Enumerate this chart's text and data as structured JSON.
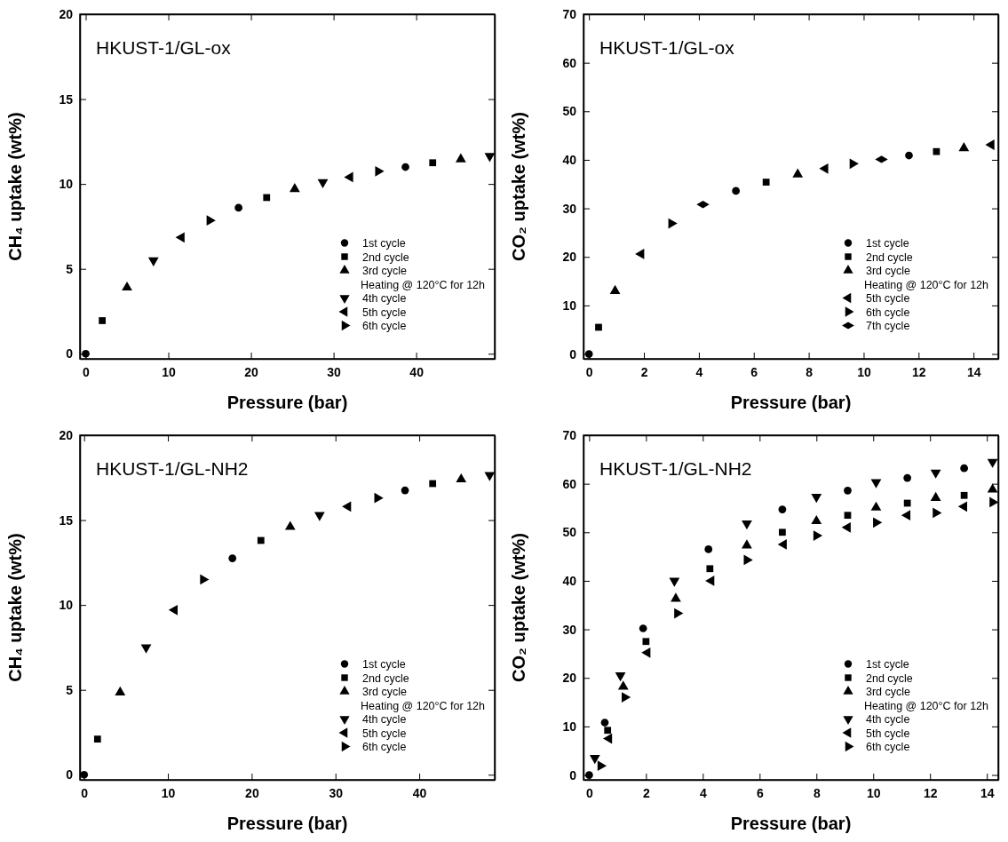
{
  "chart_data": [
    {
      "type": "scatter",
      "title": "HKUST-1/GL-ox",
      "xlabel": "Pressure (bar)",
      "ylabel": "CH₄ uptake (wt%)",
      "xlim": [
        -0.7,
        49.5
      ],
      "ylim": [
        -0.3,
        20
      ],
      "xticks": [
        0,
        10,
        20,
        30,
        40
      ],
      "yticks": [
        0,
        5,
        10,
        15,
        20
      ],
      "legend": "bottom right",
      "annotations": [
        "Heating @ 120°C for 12h"
      ],
      "series": [
        {
          "name": "1st cycle",
          "color": "#000000",
          "marker": "circle",
          "x": [
            0,
            18.5,
            38.7
          ],
          "values": [
            0,
            8.6,
            11.0
          ]
        },
        {
          "name": "2nd cycle",
          "color": "#000000",
          "marker": "square",
          "x": [
            2,
            21.9,
            42
          ],
          "values": [
            1.95,
            9.2,
            11.25
          ]
        },
        {
          "name": "3rd cycle",
          "color": "#000000",
          "marker": "triangle",
          "x": [
            5,
            25.3,
            45.4
          ],
          "values": [
            3.9,
            9.7,
            11.45
          ]
        },
        {
          "name": "4th cycle",
          "color": "#000000",
          "marker": "triangle-down",
          "x": [
            8.2,
            28.7,
            48.9
          ],
          "values": [
            5.5,
            10.1,
            11.65
          ]
        },
        {
          "name": "5th cycle",
          "color": "#000000",
          "marker": "triangle-left",
          "x": [
            11.6,
            32
          ],
          "values": [
            6.85,
            10.4
          ]
        },
        {
          "name": "6th cycle",
          "color": "#000000",
          "marker": "triangle-right",
          "x": [
            15,
            35.4
          ],
          "values": [
            7.85,
            10.75
          ]
        }
      ]
    },
    {
      "type": "scatter",
      "title": "HKUST-1/GL-ox",
      "xlabel": "Pressure (bar)",
      "ylabel": "CO₂ uptake (wt%)",
      "xlim": [
        -0.2,
        14.9
      ],
      "ylim": [
        -1,
        70
      ],
      "xticks": [
        0,
        2,
        4,
        6,
        8,
        10,
        12,
        14
      ],
      "yticks": [
        0,
        10,
        20,
        30,
        40,
        50,
        60,
        70
      ],
      "legend": "bottom right",
      "annotations": [
        "Heating @ 120°C for 12h"
      ],
      "series": [
        {
          "name": "1st cycle",
          "color": "#000000",
          "marker": "circle",
          "x": [
            0,
            5.35,
            11.65
          ],
          "values": [
            0,
            33.6,
            40.9
          ]
        },
        {
          "name": "2nd cycle",
          "color": "#000000",
          "marker": "square",
          "x": [
            0.35,
            6.45,
            12.65
          ],
          "values": [
            5.5,
            35.4,
            41.7
          ]
        },
        {
          "name": "3rd cycle",
          "color": "#000000",
          "marker": "triangle",
          "x": [
            0.95,
            7.6,
            13.65
          ],
          "values": [
            13,
            37,
            42.4
          ]
        },
        {
          "name": "5th cycle",
          "color": "#000000",
          "marker": "triangle-left",
          "x": [
            1.9,
            8.6,
            14.65
          ],
          "values": [
            20.6,
            38.2,
            43.1
          ]
        },
        {
          "name": "6th cycle",
          "color": "#000000",
          "marker": "triangle-right",
          "x": [
            3.0,
            9.6
          ],
          "values": [
            26.9,
            39.2
          ]
        },
        {
          "name": "7th cycle",
          "color": "#000000",
          "marker": "diamond",
          "x": [
            4.15,
            10.65
          ],
          "values": [
            30.8,
            40.1
          ]
        }
      ]
    },
    {
      "type": "scatter",
      "title": "HKUST-1/GL-NH2",
      "xlabel": "Pressure (bar)",
      "ylabel": "CH₄ uptake (wt%)",
      "xlim": [
        -0.5,
        49
      ],
      "ylim": [
        -0.3,
        20
      ],
      "xticks": [
        0,
        10,
        20,
        30,
        40
      ],
      "yticks": [
        0,
        5,
        10,
        15,
        20
      ],
      "legend": "bottom right",
      "annotations": [
        "Heating @ 120°C for 12h"
      ],
      "series": [
        {
          "name": "1st cycle",
          "color": "#000000",
          "marker": "circle",
          "x": [
            0,
            17.7,
            38.3
          ],
          "values": [
            0,
            12.75,
            16.75
          ]
        },
        {
          "name": "2nd cycle",
          "color": "#000000",
          "marker": "square",
          "x": [
            1.6,
            21.1,
            41.6
          ],
          "values": [
            2.1,
            13.8,
            17.15
          ]
        },
        {
          "name": "3rd cycle",
          "color": "#000000",
          "marker": "triangle",
          "x": [
            4.3,
            24.6,
            45
          ],
          "values": [
            4.85,
            14.6,
            17.4
          ]
        },
        {
          "name": "4th cycle",
          "color": "#000000",
          "marker": "triangle-down",
          "x": [
            7.4,
            28.1,
            48.4
          ],
          "values": [
            7.5,
            15.3,
            17.65
          ]
        },
        {
          "name": "5th cycle",
          "color": "#000000",
          "marker": "triangle-left",
          "x": [
            10.8,
            31.5
          ],
          "values": [
            9.7,
            15.8
          ]
        },
        {
          "name": "6th cycle",
          "color": "#000000",
          "marker": "triangle-right",
          "x": [
            14.2,
            35
          ],
          "values": [
            11.5,
            16.3
          ]
        }
      ]
    },
    {
      "type": "scatter",
      "title": "HKUST-1/GL-NH2",
      "xlabel": "Pressure (bar)",
      "ylabel": "CO₂ uptake (wt%)",
      "xlim": [
        -0.2,
        14.4
      ],
      "ylim": [
        -1,
        70
      ],
      "xticks": [
        0,
        2,
        4,
        6,
        8,
        10,
        12,
        14
      ],
      "yticks": [
        0,
        10,
        20,
        30,
        40,
        50,
        60,
        70
      ],
      "legend": "bottom right",
      "annotations": [
        "Heating @ 120°C for 12h"
      ],
      "series": [
        {
          "name": "1st cycle",
          "color": "#000000",
          "marker": "circle",
          "x": [
            0,
            0.55,
            1.9,
            4.2,
            6.8,
            9.1,
            11.2,
            13.2
          ],
          "values": [
            0,
            10.8,
            30.2,
            46.5,
            54.7,
            58.6,
            61.2,
            63.2
          ]
        },
        {
          "name": "2nd cycle",
          "color": "#000000",
          "marker": "square",
          "x": [
            0.65,
            2.0,
            4.25,
            6.8,
            9.1,
            11.2,
            13.2
          ],
          "values": [
            9.2,
            27.5,
            42.5,
            50,
            53.5,
            56,
            57.6
          ]
        },
        {
          "name": "3rd cycle",
          "color": "#000000",
          "marker": "triangle",
          "x": [
            1.2,
            3.05,
            5.55,
            8,
            10.1,
            12.2,
            14.2
          ],
          "values": [
            18.2,
            36.3,
            47.3,
            52.3,
            55.1,
            57.1,
            58.8
          ]
        },
        {
          "name": "4th cycle",
          "color": "#000000",
          "marker": "triangle-down",
          "x": [
            0.2,
            1.1,
            3.0,
            5.55,
            8.0,
            10.1,
            12.2,
            14.2
          ],
          "values": [
            3.5,
            20.5,
            40.0,
            51.8,
            57.3,
            60.3,
            62.3,
            64.5
          ]
        },
        {
          "name": "5th cycle",
          "color": "#000000",
          "marker": "triangle-left",
          "x": [
            0.7,
            2.05,
            4.3,
            6.85,
            9.1,
            11.2,
            13.2
          ],
          "values": [
            7.5,
            25.2,
            40,
            47.5,
            51,
            53.5,
            55.3
          ]
        },
        {
          "name": "6th cycle",
          "color": "#000000",
          "marker": "triangle-right",
          "x": [
            0.4,
            1.25,
            3.1,
            5.55,
            8,
            10.1,
            12.2,
            14.2
          ],
          "values": [
            1.9,
            16,
            33.3,
            44.3,
            49.3,
            52.0,
            54.0,
            56.2
          ]
        }
      ]
    }
  ]
}
